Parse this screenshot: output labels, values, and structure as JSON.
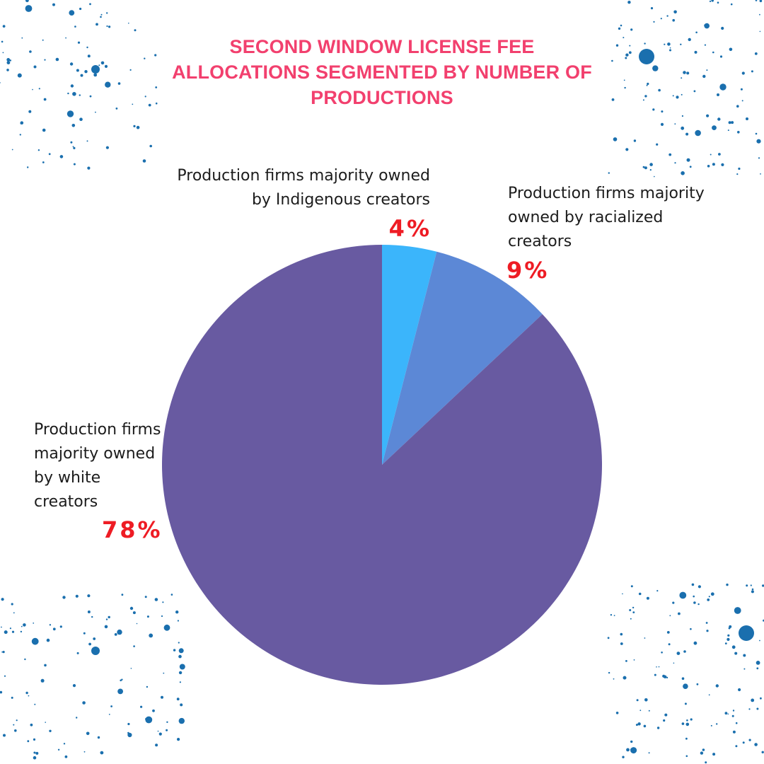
{
  "colors": {
    "title": "#f2406e",
    "percent": "#ee1c24",
    "speckle": "#1a6fae",
    "background": "#ffffff"
  },
  "chart_data": {
    "type": "pie",
    "title": "SECOND WINDOW LICENSE FEE ALLOCATIONS SEGMENTED BY NUMBER OF PRODUCTIONS",
    "legend": "none (direct labels)",
    "start_angle": "12 o'clock, clockwise",
    "slices": [
      {
        "label": "Production firms majority owned by Indigenous creators",
        "value": 4,
        "display": "4%",
        "color": "#3bb5fb"
      },
      {
        "label": "Production firms majority owned by racialized creators",
        "value": 9,
        "display": "9%",
        "color": "#5c88d6"
      },
      {
        "label": "Production firms majority owned by white creators",
        "value": 78,
        "display": "78%",
        "color": "#685aa1"
      }
    ]
  }
}
